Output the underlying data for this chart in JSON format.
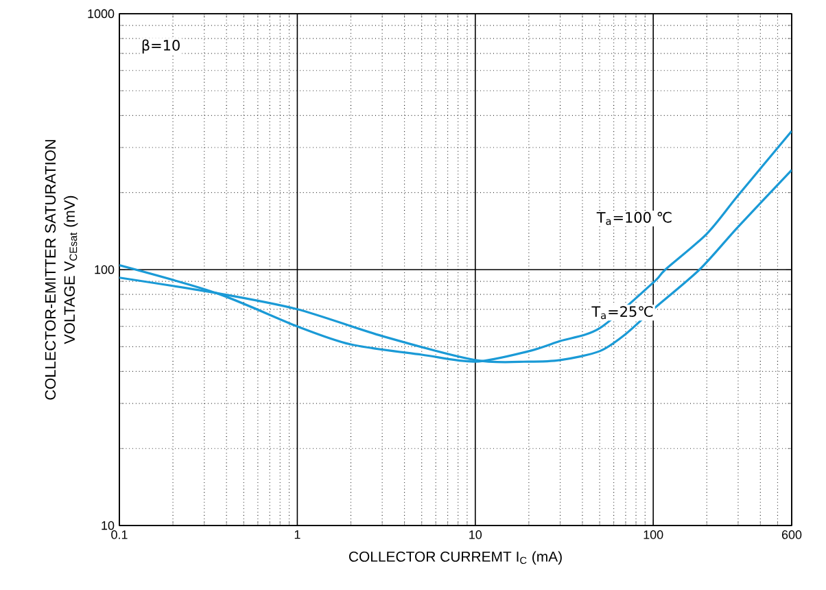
{
  "chart_data": {
    "type": "line",
    "xlabel": "COLLECTOR CURREMT   I$_{C}$   (mA)",
    "ylabel": "COLLECTOR-EMITTER SATURATION VOLTAGE   V$_{CEsat}$   (mV)",
    "log": "xy",
    "xlim": [
      0.1,
      600
    ],
    "ylim": [
      10,
      1000
    ],
    "xticks": [
      0.1,
      1,
      10,
      100,
      600
    ],
    "yticks": [
      10,
      100,
      1000
    ],
    "grid": true,
    "legend": false,
    "line_style": "solid",
    "annotations": [
      "β=10"
    ],
    "series": [
      {
        "name": "T$_{a}$=100 ℃",
        "color": "#1a9ad6",
        "x": [
          0.1,
          0.35,
          1,
          2,
          5,
          10,
          20,
          30,
          50,
          100,
          117,
          200,
          300,
          600
        ],
        "values": [
          104,
          81,
          60,
          51,
          46.5,
          43.7,
          48,
          52.6,
          59,
          89,
          100,
          138,
          195,
          348
        ]
      },
      {
        "name": "T$_{a}$=25℃",
        "color": "#1a9ad6",
        "x": [
          0.1,
          0.35,
          1,
          3,
          10,
          20,
          30,
          50,
          70,
          100,
          182,
          300,
          600
        ],
        "values": [
          93,
          81,
          70,
          55,
          44.3,
          43.7,
          44.3,
          48,
          56,
          70,
          100,
          147,
          245
        ]
      }
    ]
  }
}
